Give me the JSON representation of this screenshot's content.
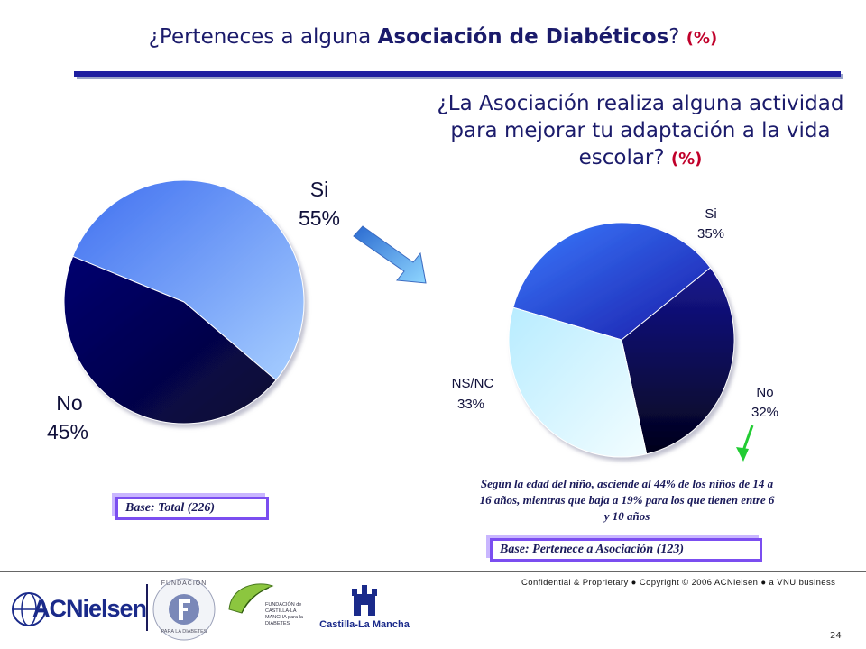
{
  "title": {
    "prefix": "¿Perteneces a alguna ",
    "emphasis": "Asociación de Diabéticos",
    "suffix": "? ",
    "pct": "(%)"
  },
  "question2": {
    "text": "¿La Asociación realiza alguna actividad para mejorar tu adaptación a la vida escolar?",
    "pct": "(%)"
  },
  "chart_data": [
    {
      "type": "pie",
      "slices": [
        {
          "label": "Si",
          "value": 55,
          "value_label": "55%",
          "color": "#5a86f0"
        },
        {
          "label": "No",
          "value": 45,
          "value_label": "45%",
          "color": "#0a0a6e"
        }
      ],
      "base": "Base: Total (226)"
    },
    {
      "type": "pie",
      "slices": [
        {
          "label": "Si",
          "value": 35,
          "value_label": "35%",
          "color": "#2e5ce8"
        },
        {
          "label": "No",
          "value": 32,
          "value_label": "32%",
          "color": "#10107a"
        },
        {
          "label": "NS/NC",
          "value": 33,
          "value_label": "33%",
          "color": "#c8f4ff"
        }
      ],
      "base": "Base: Pertenece a Asociación  (123)"
    }
  ],
  "note": "Según la edad del niño, asciende al  44% de los niños de 14 a 16 años, mientras que baja a 19% para los que tienen entre 6 y 10 años",
  "footer": {
    "confidential": "Confidential & Proprietary ● Copyright © 2006 ACNielsen ● a VNU business",
    "page_number": "24",
    "logos": {
      "acnielsen": "ACNielsen",
      "fundacion": "FUNDACION",
      "fundacion2": "PARA LA DIABETES",
      "fcm": "FUNDACIÓN de CASTILLA-LA MANCHA para la DIABETES",
      "castilla": "Castilla-La Mancha"
    }
  }
}
